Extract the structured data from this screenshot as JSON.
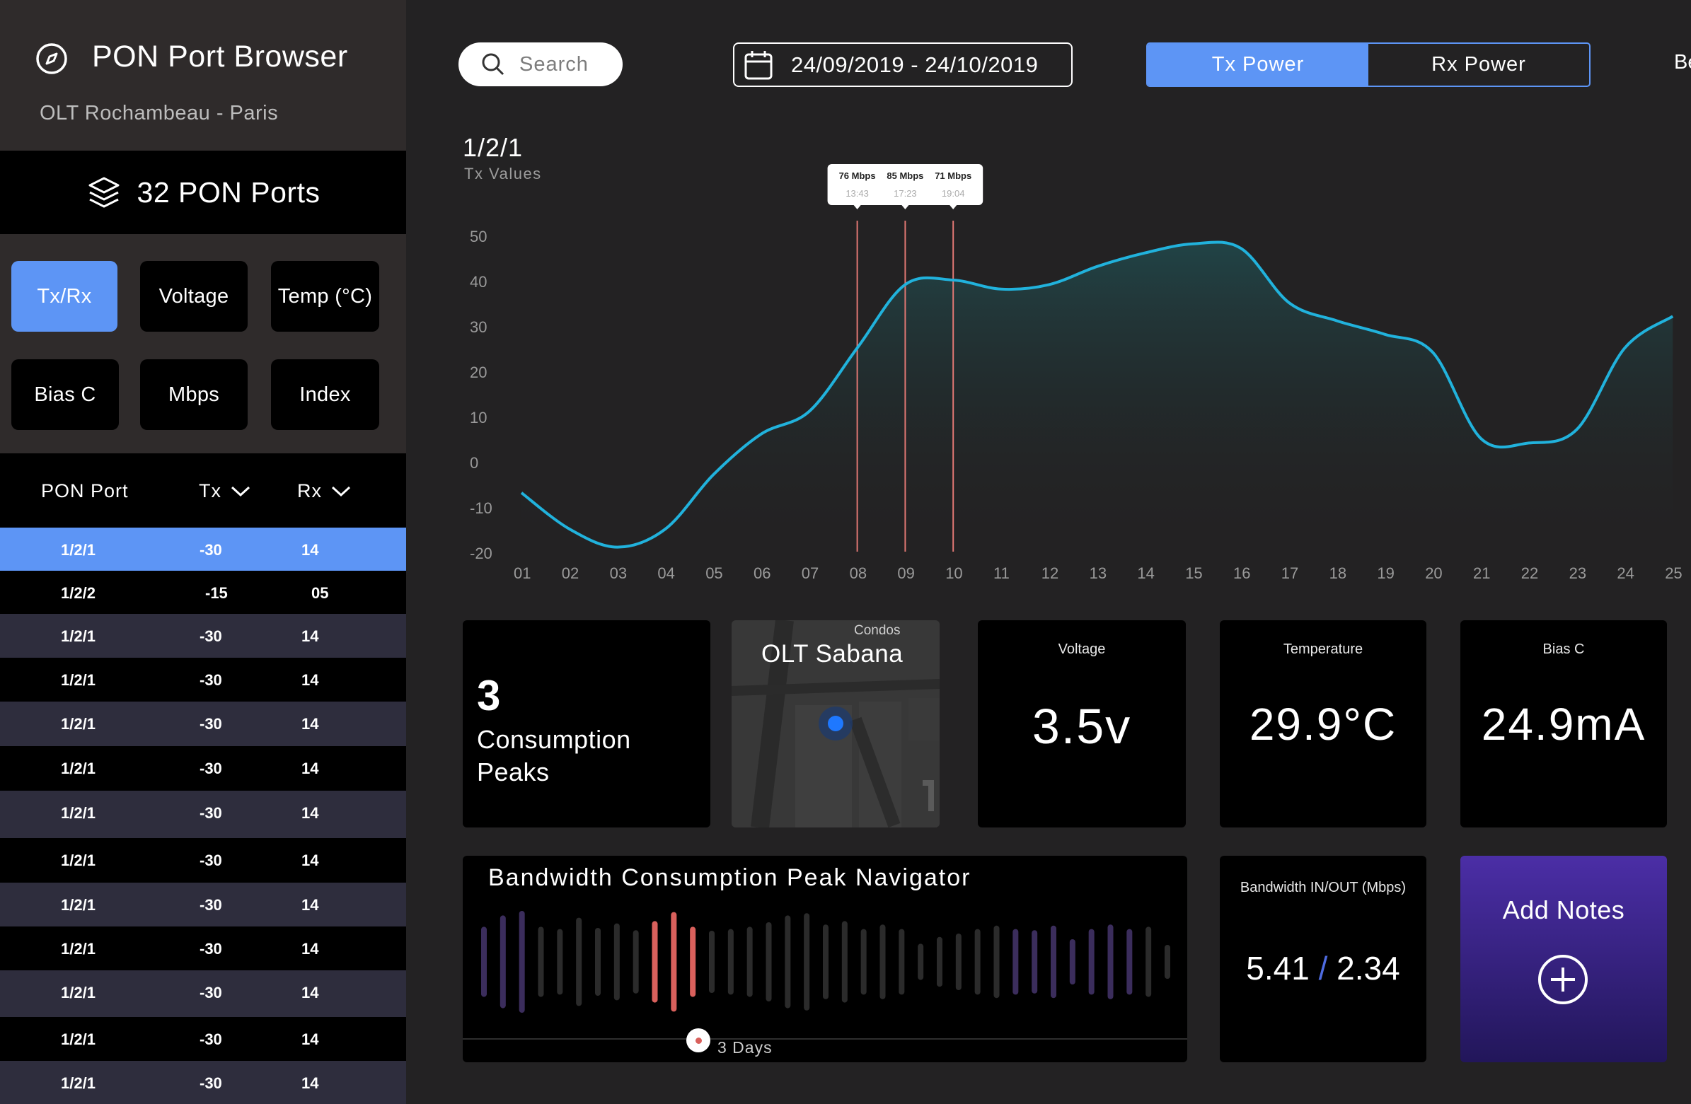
{
  "sidebar": {
    "app_title": "PON Port Browser",
    "app_subtitle": "OLT Rochambeau - Paris",
    "ports_label": "32 PON Ports",
    "filters": [
      "Tx/Rx",
      "Voltage",
      "Temp (°C)",
      "Bias C",
      "Mbps",
      "Index"
    ],
    "active_filter": "Tx/Rx",
    "table": {
      "headers": {
        "port": "PON Port",
        "tx": "Tx",
        "rx": "Rx"
      },
      "rows": [
        {
          "port": "1/2/1",
          "tx": "-30",
          "rx": "14"
        },
        {
          "port": "1/2/2",
          "tx": "-15",
          "rx": "05"
        },
        {
          "port": "1/2/1",
          "tx": "-30",
          "rx": "14"
        },
        {
          "port": "1/2/1",
          "tx": "-30",
          "rx": "14"
        },
        {
          "port": "1/2/1",
          "tx": "-30",
          "rx": "14"
        },
        {
          "port": "1/2/1",
          "tx": "-30",
          "rx": "14"
        },
        {
          "port": "1/2/1",
          "tx": "-30",
          "rx": "14"
        },
        {
          "port": "1/2/1",
          "tx": "-30",
          "rx": "14"
        },
        {
          "port": "1/2/1",
          "tx": "-30",
          "rx": "14"
        },
        {
          "port": "1/2/1",
          "tx": "-30",
          "rx": "14"
        },
        {
          "port": "1/2/1",
          "tx": "-30",
          "rx": "14"
        },
        {
          "port": "1/2/1",
          "tx": "-30",
          "rx": "14"
        },
        {
          "port": "1/2/1",
          "tx": "-30",
          "rx": "14"
        }
      ]
    }
  },
  "toolbar": {
    "search_placeholder": "Search",
    "date_range": "24/09/2019 - 24/10/2019",
    "toggle": [
      "Tx Power",
      "Rx Power"
    ],
    "toggle_active": "Tx Power",
    "cut_label": "Be"
  },
  "chart_data": {
    "type": "area",
    "title": "1/2/1",
    "subtitle": "Tx Values",
    "x": [
      "01",
      "02",
      "03",
      "04",
      "05",
      "06",
      "07",
      "08",
      "09",
      "10",
      "11",
      "12",
      "13",
      "14",
      "15",
      "16",
      "17",
      "18",
      "19",
      "20",
      "21",
      "22",
      "23",
      "24",
      "25"
    ],
    "y_ticks": [
      50,
      40,
      30,
      20,
      10,
      0,
      -10,
      -20
    ],
    "ylim": [
      -20,
      50
    ],
    "values": [
      -7,
      -15,
      -19,
      -15,
      -3,
      6,
      11,
      25,
      39,
      40,
      38,
      39,
      43,
      46,
      48,
      47,
      35,
      31,
      28,
      24,
      5,
      4,
      7,
      25,
      32
    ],
    "series_color": "#21b2dc",
    "markers": [
      {
        "x": "08",
        "label": "76 Mbps",
        "time": "13:43"
      },
      {
        "x": "09",
        "label": "85 Mbps",
        "time": "17:23"
      },
      {
        "x": "10",
        "label": "71 Mbps",
        "time": "19:04"
      }
    ],
    "marker_color": "#e07773"
  },
  "cards": {
    "peaks_count": "3",
    "peaks_text": "Consumption Peaks",
    "map_title": "OLT Sabana",
    "map_label": "Condos",
    "voltage_label": "Voltage",
    "voltage_value": "3.5v",
    "temp_label": "Temperature",
    "temp_value": "29.9°C",
    "bias_label": "Bias C",
    "bias_value": "24.9mA",
    "bw_nav_title": "Bandwidth Consumption Peak Navigator",
    "bw_nav_window": "3 Days",
    "bw_inout_label": "Bandwidth IN/OUT (Mbps)",
    "bw_in": "5.41",
    "bw_sep": "/",
    "bw_out": "2.34",
    "notes_label": "Add Notes"
  },
  "peak_navigator_bars": {
    "heights": [
      0.62,
      0.82,
      0.9,
      0.62,
      0.58,
      0.78,
      0.6,
      0.68,
      0.56,
      0.72,
      0.88,
      0.62,
      0.55,
      0.58,
      0.62,
      0.7,
      0.82,
      0.86,
      0.66,
      0.72,
      0.58,
      0.66,
      0.58,
      0.32,
      0.44,
      0.5,
      0.58,
      0.64,
      0.58,
      0.56,
      0.64,
      0.4,
      0.58,
      0.66,
      0.58,
      0.62,
      0.3
    ],
    "kinds": [
      "p",
      "p",
      "p",
      "d",
      "d",
      "d",
      "d",
      "d",
      "d",
      "r",
      "r",
      "r",
      "d",
      "d",
      "d",
      "d",
      "d",
      "d",
      "d",
      "d",
      "d",
      "d",
      "d",
      "d",
      "d",
      "d",
      "d",
      "d",
      "p",
      "p",
      "p",
      "p",
      "p",
      "p",
      "p",
      "d",
      "d"
    ],
    "colors": {
      "p": "#3b2d5c",
      "d": "#2b2b2b",
      "r": "#d9605c"
    }
  }
}
